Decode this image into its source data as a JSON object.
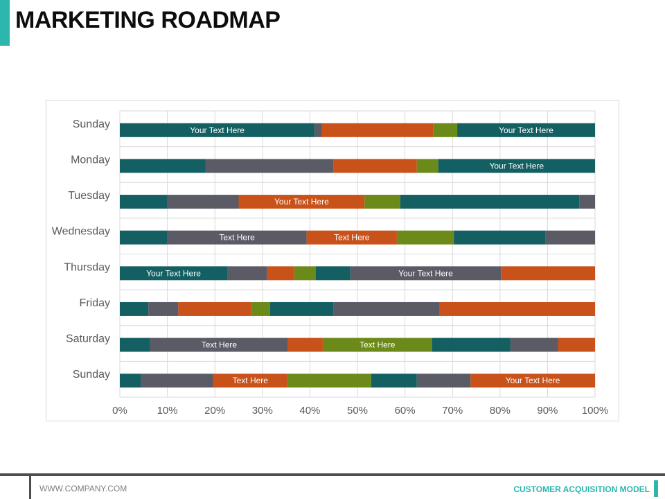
{
  "header": {
    "title": "MARKETING ROADMAP"
  },
  "footer": {
    "website": "WWW.COMPANY.COM",
    "tagline": "CUSTOMER ACQUISITION MODEL"
  },
  "colors": {
    "accent": "#2cb6ae",
    "teal": "#145f62",
    "gray": "#5b5b66",
    "orange": "#c9511a",
    "olive": "#6c8a1a",
    "grid": "#d9d9d9"
  },
  "chart_data": {
    "type": "bar",
    "orientation": "horizontal",
    "stacked": "percent",
    "title": "",
    "xlabel": "",
    "ylabel": "",
    "xlim": [
      0,
      100
    ],
    "x_ticks": [
      "0%",
      "10%",
      "20%",
      "30%",
      "40%",
      "50%",
      "60%",
      "70%",
      "80%",
      "90%",
      "100%"
    ],
    "grid": true,
    "categories": [
      "Sunday",
      "Monday",
      "Tuesday",
      "Wednesday",
      "Thursday",
      "Friday",
      "Saturday",
      "Sunday"
    ],
    "rows": [
      {
        "category": "Sunday",
        "segments": [
          {
            "color": "teal",
            "value": 41,
            "label": "Your Text Here"
          },
          {
            "color": "gray",
            "value": 1.5
          },
          {
            "color": "orange",
            "value": 23.5
          },
          {
            "color": "olive",
            "value": 5
          },
          {
            "color": "teal",
            "value": 29,
            "label": "Your Text Here"
          }
        ]
      },
      {
        "category": "Monday",
        "segments": [
          {
            "color": "teal",
            "value": 18
          },
          {
            "color": "gray",
            "value": 27
          },
          {
            "color": "orange",
            "value": 17.5
          },
          {
            "color": "olive",
            "value": 4.5
          },
          {
            "color": "teal",
            "value": 33,
            "label": "Your Text Here"
          }
        ]
      },
      {
        "category": "Tuesday",
        "segments": [
          {
            "color": "teal",
            "value": 10
          },
          {
            "color": "gray",
            "value": 15
          },
          {
            "color": "orange",
            "value": 26.5,
            "label": "Your Text Here"
          },
          {
            "color": "olive",
            "value": 7.5
          },
          {
            "color": "teal",
            "value": 37.7
          },
          {
            "color": "gray",
            "value": 3.3
          }
        ]
      },
      {
        "category": "Wednesday",
        "segments": [
          {
            "color": "teal",
            "value": 10
          },
          {
            "color": "gray",
            "value": 29.3,
            "label": "Text Here"
          },
          {
            "color": "orange",
            "value": 19,
            "label": "Text Here"
          },
          {
            "color": "olive",
            "value": 12
          },
          {
            "color": "teal",
            "value": 19.3
          },
          {
            "color": "gray",
            "value": 10.4
          }
        ]
      },
      {
        "category": "Thursday",
        "segments": [
          {
            "color": "teal",
            "value": 22.6,
            "label": "Your Text Here"
          },
          {
            "color": "gray",
            "value": 8.4
          },
          {
            "color": "orange",
            "value": 5.7
          },
          {
            "color": "olive",
            "value": 4.5
          },
          {
            "color": "teal",
            "value": 7.3
          },
          {
            "color": "gray",
            "value": 31.7,
            "label": "Your Text Here"
          },
          {
            "color": "orange",
            "value": 19.8
          }
        ]
      },
      {
        "category": "Friday",
        "segments": [
          {
            "color": "teal",
            "value": 6
          },
          {
            "color": "gray",
            "value": 6.3
          },
          {
            "color": "orange",
            "value": 15.3
          },
          {
            "color": "olive",
            "value": 4
          },
          {
            "color": "teal",
            "value": 13.4
          },
          {
            "color": "gray",
            "value": 22.2
          },
          {
            "color": "orange",
            "value": 32.8
          }
        ]
      },
      {
        "category": "Saturday",
        "segments": [
          {
            "color": "teal",
            "value": 6.4
          },
          {
            "color": "gray",
            "value": 29,
            "label": "Text Here"
          },
          {
            "color": "orange",
            "value": 7.3
          },
          {
            "color": "olive",
            "value": 23,
            "label": "Text Here"
          },
          {
            "color": "teal",
            "value": 16.5
          },
          {
            "color": "gray",
            "value": 10
          },
          {
            "color": "orange",
            "value": 7.8
          }
        ]
      },
      {
        "category": "Sunday",
        "segments": [
          {
            "color": "teal",
            "value": 4.5
          },
          {
            "color": "gray",
            "value": 15.1
          },
          {
            "color": "orange",
            "value": 15.7,
            "label": "Text Here"
          },
          {
            "color": "olive",
            "value": 17.6
          },
          {
            "color": "teal",
            "value": 9.6
          },
          {
            "color": "gray",
            "value": 11.3
          },
          {
            "color": "orange",
            "value": 26.2,
            "label": "Your Text Here"
          }
        ]
      }
    ]
  }
}
